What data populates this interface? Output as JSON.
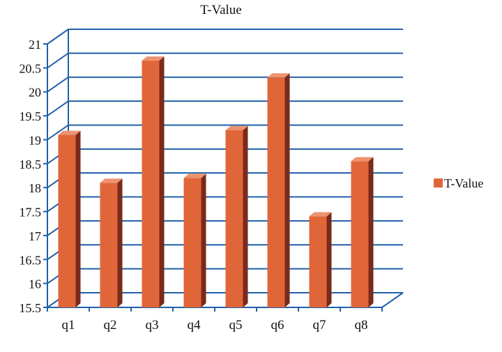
{
  "chart_data": {
    "type": "bar",
    "title": "T-Value",
    "categories": [
      "q1",
      "q2",
      "q3",
      "q4",
      "q5",
      "q6",
      "q7",
      "q8"
    ],
    "series": [
      {
        "name": "T-Value",
        "values": [
          19.1,
          18.1,
          20.65,
          18.2,
          19.2,
          20.3,
          17.4,
          18.55
        ]
      }
    ],
    "yticks": [
      "15.5",
      "16",
      "16.5",
      "17",
      "17.5",
      "18",
      "18.5",
      "19",
      "19.5",
      "20",
      "20.5",
      "21"
    ],
    "ylim": [
      15.5,
      21
    ],
    "legend_position": "right",
    "grid": true,
    "colors": {
      "bar_front": "#E0663A",
      "bar_side": "#7A2A1A",
      "bar_top": "#EE9270",
      "grid": "#1F5FA8"
    }
  }
}
